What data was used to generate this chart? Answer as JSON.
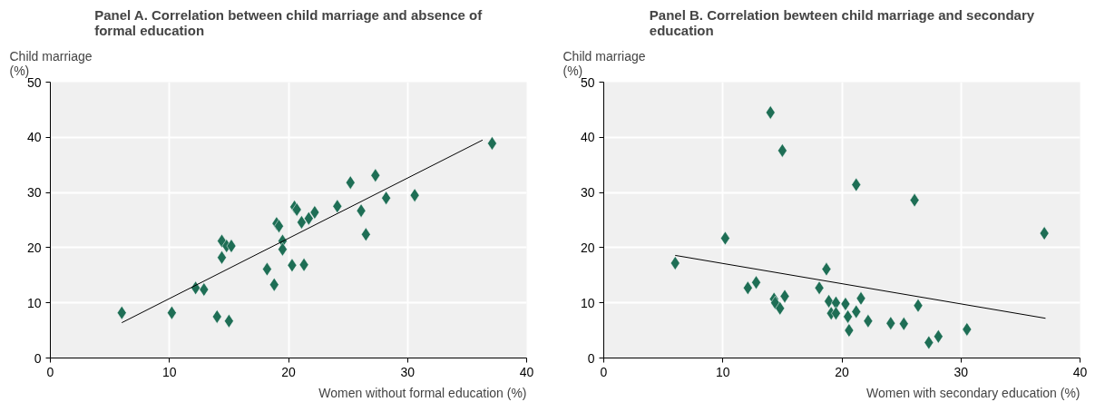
{
  "chart_data": [
    {
      "type": "scatter",
      "title": "Panel A. Correlation between child marriage and absence of formal education",
      "xlabel": "Women without formal education (%)",
      "ylabel": "Child marriage (%)",
      "xlim": [
        0,
        40
      ],
      "ylim": [
        0,
        50
      ],
      "xticks": [
        0,
        10,
        20,
        30,
        40
      ],
      "yticks": [
        0,
        10,
        20,
        30,
        40,
        50
      ],
      "grid": true,
      "series": [
        {
          "marker": "diamond",
          "color": "#1e6e55",
          "x": [
            6.0,
            10.2,
            12.2,
            12.9,
            14.0,
            14.4,
            14.8,
            15.2,
            14.4,
            15.0,
            18.2,
            18.8,
            19.0,
            19.2,
            19.5,
            19.5,
            20.3,
            20.5,
            20.7,
            21.3,
            21.1,
            21.7,
            22.2,
            24.1,
            25.2,
            26.1,
            26.5,
            27.3,
            28.2,
            30.6,
            37.1
          ],
          "values": [
            8.2,
            8.2,
            12.7,
            12.4,
            7.5,
            21.2,
            20.3,
            20.3,
            18.2,
            6.7,
            16.1,
            13.3,
            24.4,
            23.9,
            21.2,
            19.7,
            16.8,
            27.4,
            26.9,
            16.9,
            24.6,
            25.3,
            26.4,
            27.5,
            31.8,
            26.7,
            22.4,
            33.1,
            29.0,
            29.5,
            38.9
          ]
        },
        {
          "type": "line",
          "marker": "none",
          "color": "#000000",
          "x": [
            6.0,
            36.3
          ],
          "values": [
            6.4,
            39.5
          ]
        }
      ]
    },
    {
      "type": "scatter",
      "title": "Panel B. Correlation bewteen child marriage and secondary education",
      "xlabel": "Women with secondary education (%)",
      "ylabel": "Child marriage (%)",
      "xlim": [
        0,
        40
      ],
      "ylim": [
        0,
        50
      ],
      "xticks": [
        0,
        10,
        20,
        30,
        40
      ],
      "yticks": [
        0,
        10,
        20,
        30,
        40,
        50
      ],
      "grid": true,
      "series": [
        {
          "marker": "diamond",
          "color": "#1e6e55",
          "x": [
            14.0,
            15.0,
            21.2,
            26.1,
            37.0,
            10.2,
            6.0,
            18.7,
            12.8,
            12.1,
            18.1,
            14.3,
            14.4,
            15.2,
            14.8,
            18.9,
            19.5,
            20.3,
            21.6,
            19.1,
            19.5,
            20.5,
            21.2,
            20.6,
            22.2,
            24.1,
            25.2,
            26.4,
            27.3,
            28.1,
            30.5
          ],
          "values": [
            44.5,
            37.6,
            31.4,
            28.6,
            22.6,
            21.7,
            17.2,
            16.1,
            13.7,
            12.7,
            12.7,
            10.7,
            10.0,
            11.2,
            9.0,
            10.3,
            10.0,
            9.8,
            10.8,
            8.1,
            8.1,
            7.5,
            8.4,
            5.0,
            6.7,
            6.3,
            6.2,
            9.5,
            2.8,
            3.9,
            5.2
          ]
        },
        {
          "type": "line",
          "marker": "none",
          "color": "#000000",
          "x": [
            6.0,
            37.1
          ],
          "values": [
            18.6,
            7.2
          ]
        }
      ]
    }
  ]
}
